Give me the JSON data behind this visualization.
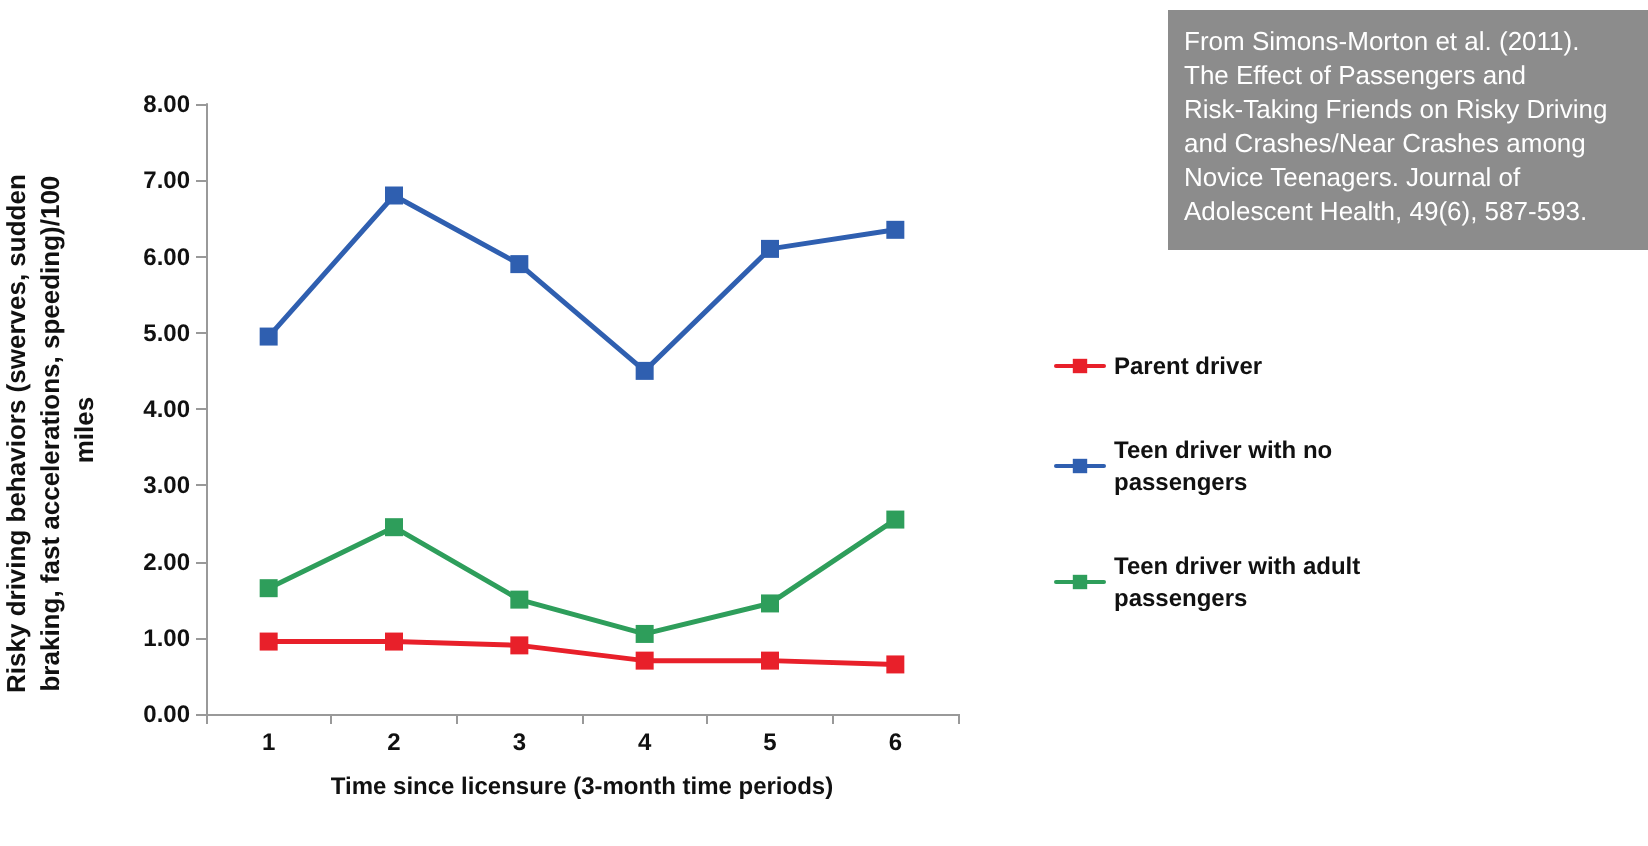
{
  "chart_data": {
    "type": "line",
    "xlabel": "Time since licensure (3-month time periods)",
    "ylabel": "Risky driving behaviors (swerves, sudden braking, fast accelerations, speeding)/100 miles",
    "categories": [
      "1",
      "2",
      "3",
      "4",
      "5",
      "6"
    ],
    "series": [
      {
        "name": "Parent driver",
        "color": "#e8202a",
        "values": [
          0.95,
          0.95,
          0.9,
          0.7,
          0.7,
          0.65
        ]
      },
      {
        "name": "Teen driver with no passengers",
        "color": "#2f5fb0",
        "values": [
          4.95,
          6.8,
          5.9,
          4.5,
          6.1,
          6.35
        ]
      },
      {
        "name": "Teen driver with adult passengers",
        "color": "#2e9e5b",
        "values": [
          1.65,
          2.45,
          1.5,
          1.05,
          1.45,
          2.55
        ]
      }
    ],
    "ylim": [
      0,
      8
    ],
    "yticks": [
      {
        "value": 0,
        "label": "0.00"
      },
      {
        "value": 1,
        "label": "1.00"
      },
      {
        "value": 2,
        "label": "2.00"
      },
      {
        "value": 3,
        "label": "3.00"
      },
      {
        "value": 4,
        "label": "4.00"
      },
      {
        "value": 5,
        "label": "5.00"
      },
      {
        "value": 6,
        "label": "6.00"
      },
      {
        "value": 7,
        "label": "7.00"
      },
      {
        "value": 8,
        "label": "8.00"
      }
    ],
    "annotations": [
      "From Simons-Morton et al. (2011). The Effect of Passengers and Risk-Taking Friends on Risky Driving and Crashes/Near Crashes among Novice Teenagers. Journal of Adolescent Health, 49(6), 587-593."
    ],
    "grid": false,
    "legend": "right",
    "marker": "square",
    "line_style": "solid"
  }
}
